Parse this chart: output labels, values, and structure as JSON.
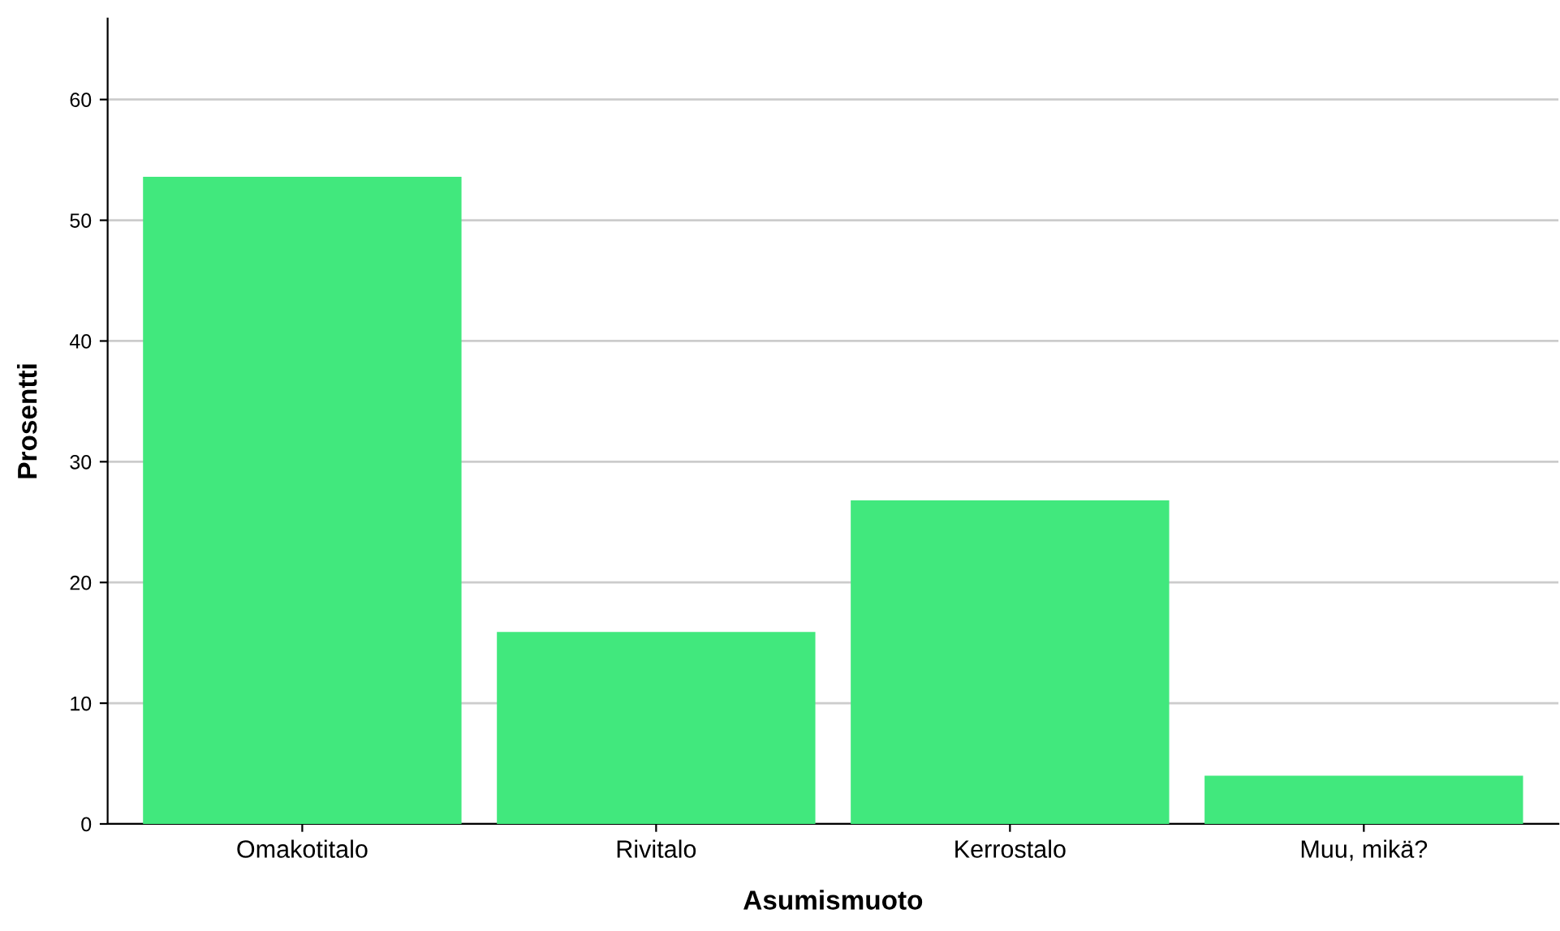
{
  "chart_data": {
    "type": "bar",
    "xlabel": "Asumismuoto",
    "ylabel": "Prosentti",
    "categories": [
      "Omakotitalo",
      "Rivitalo",
      "Kerrostalo",
      "Muu, mikä?"
    ],
    "values": [
      53.6,
      15.9,
      26.8,
      4.0
    ],
    "color": "#41e87d",
    "ylim": [
      0,
      66.7
    ],
    "yticks": [
      0,
      10,
      20,
      30,
      40,
      50,
      60
    ],
    "grid": "y"
  }
}
